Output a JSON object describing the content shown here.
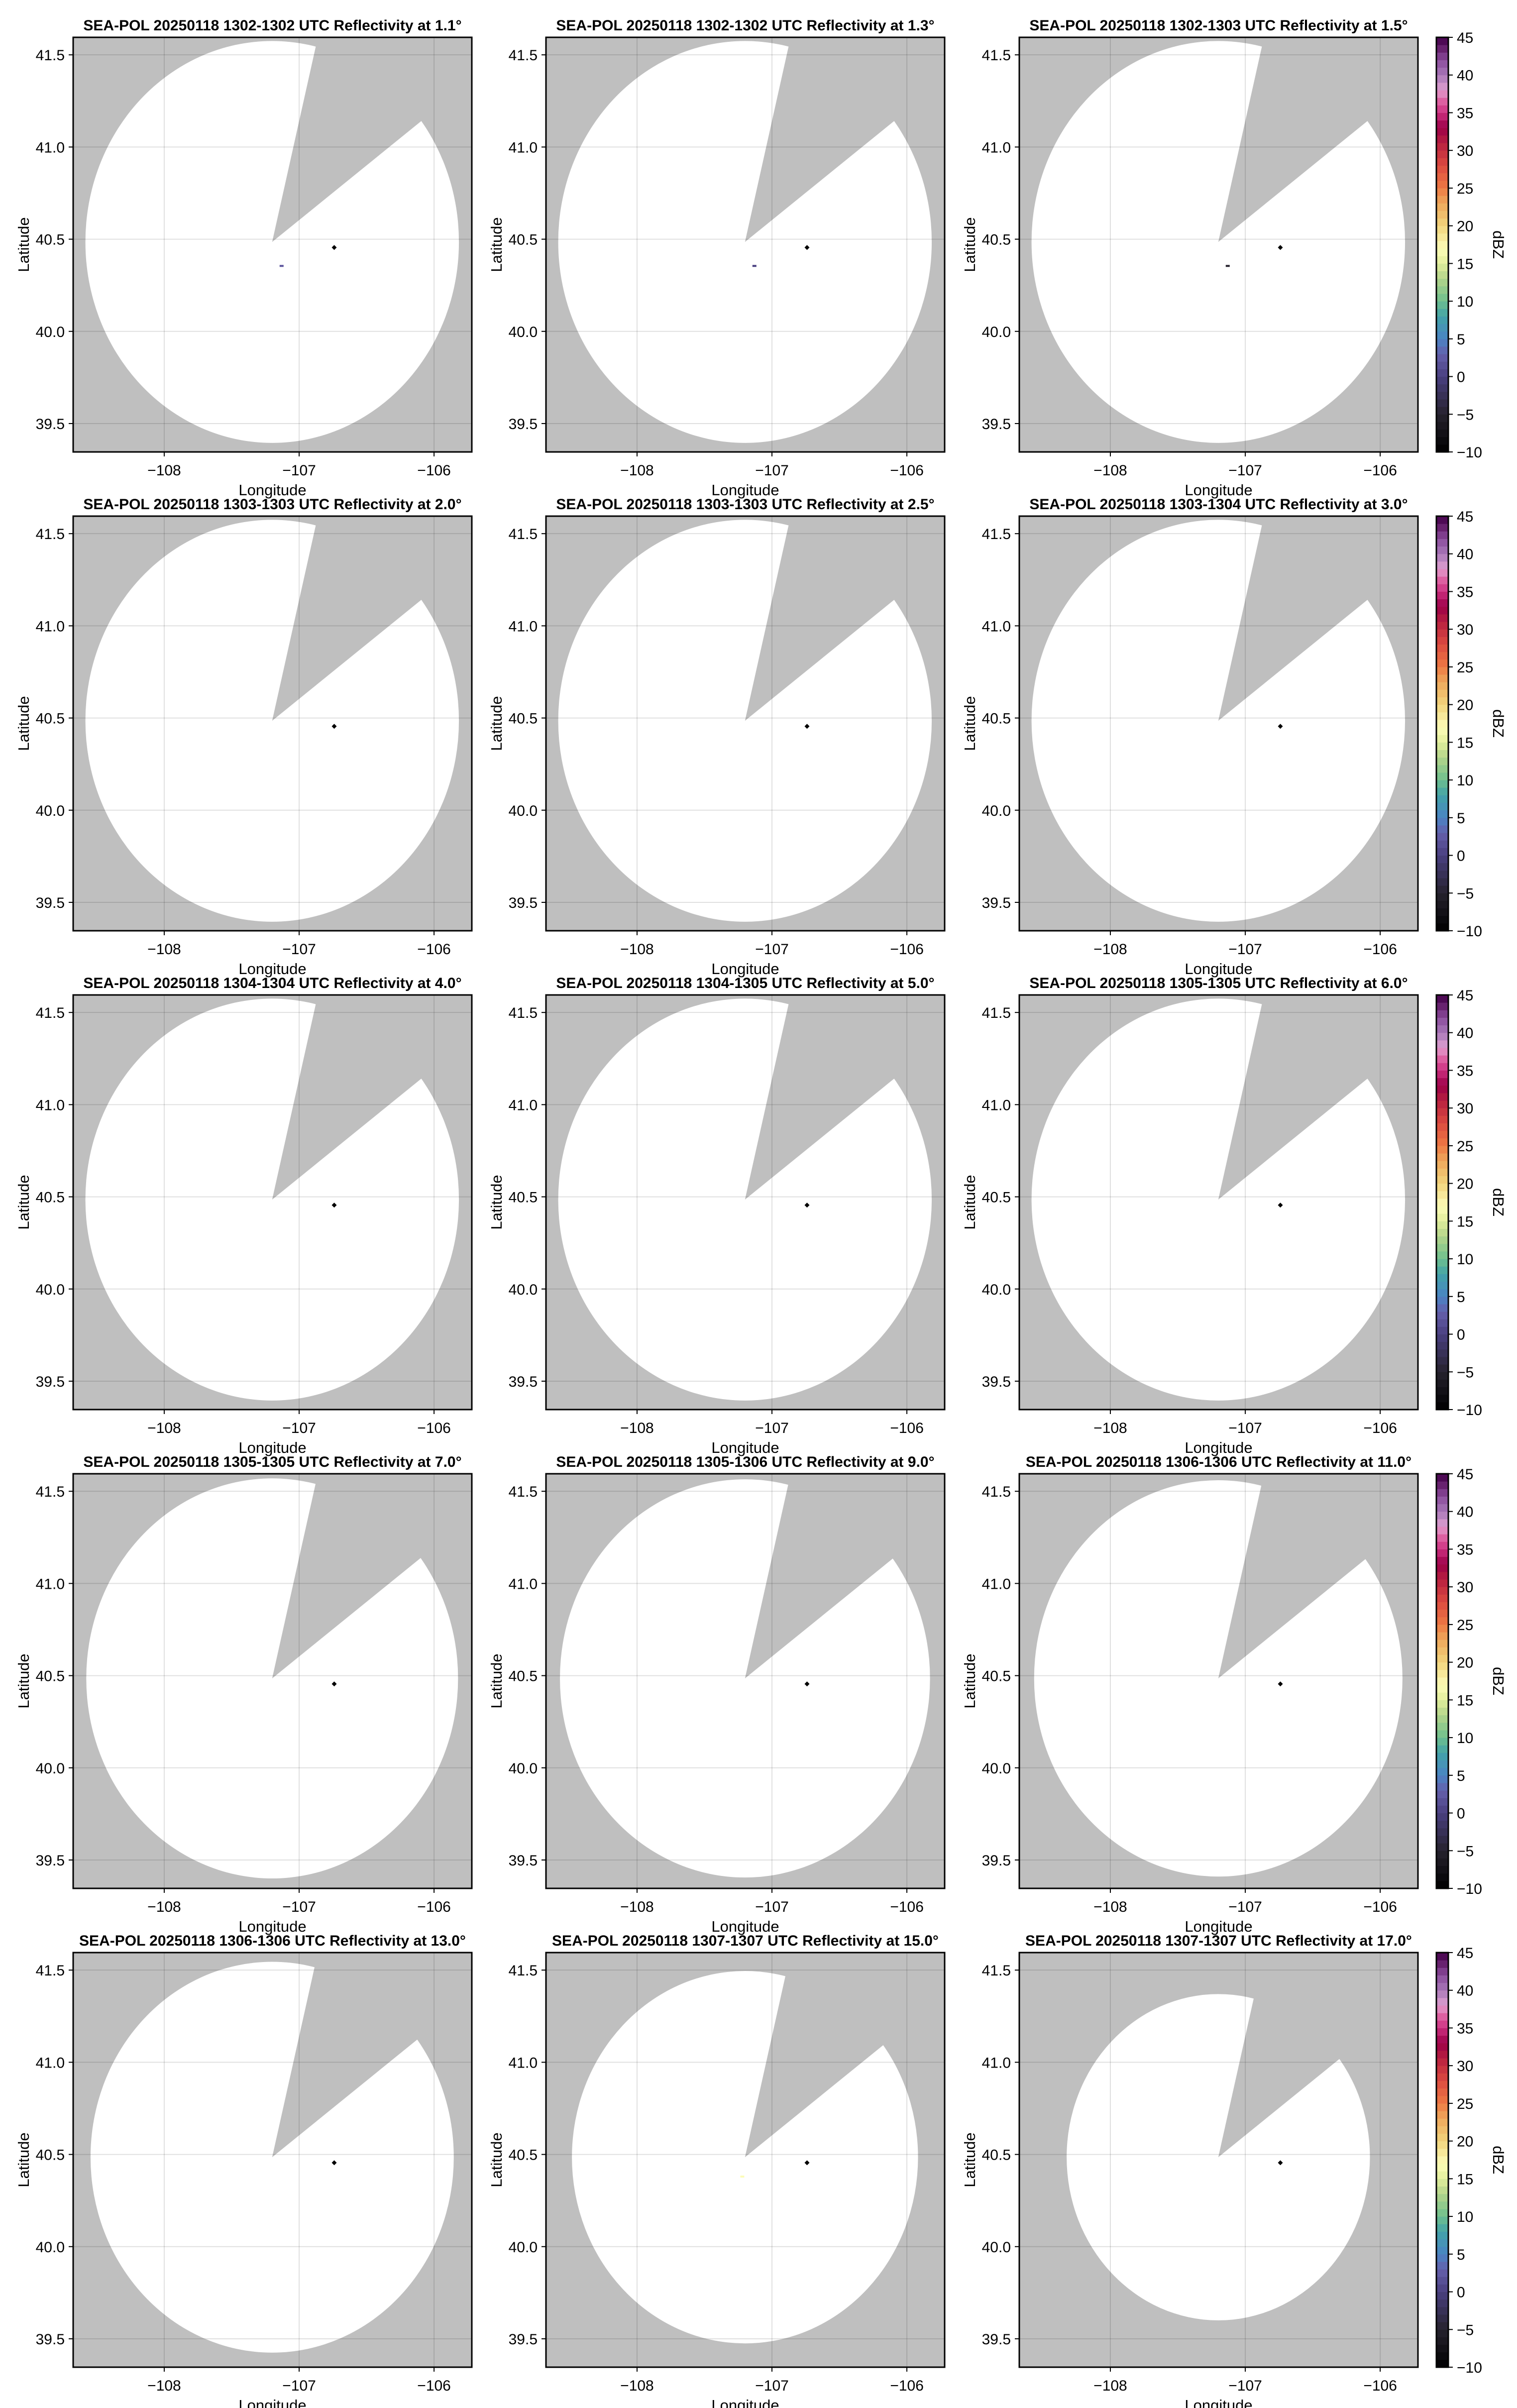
{
  "chart_data": {
    "type": "heatmap",
    "layout": "5 rows x 3 columns",
    "xlabel": "Longitude",
    "ylabel": "Latitude",
    "xlim": [
      -108.675,
      -105.72
    ],
    "ylim": [
      39.346,
      41.595
    ],
    "xticks": [
      -108,
      -107,
      -106
    ],
    "xtick_labels": [
      "−108",
      "−107",
      "−106"
    ],
    "yticks": [
      39.5,
      40.0,
      40.5,
      41.0,
      41.5
    ],
    "ytick_labels": [
      "39.5",
      "40.0",
      "40.5",
      "41.0",
      "41.5"
    ],
    "grid": true,
    "no_data_color": "#bfbfbf",
    "coverage_color": "#ffffff",
    "radar_center": {
      "lon": -107.2,
      "lat": 40.485
    },
    "blocked_sector_azimuth_deg": [
      13.5,
      53
    ],
    "site_marker": {
      "lon": -106.74,
      "lat": 40.455,
      "color": "#000000"
    },
    "colorbar": {
      "label": "dBZ",
      "range": [
        -10,
        45
      ],
      "step": 1,
      "ticks": [
        -10,
        -5,
        0,
        5,
        10,
        15,
        20,
        25,
        30,
        35,
        40,
        45
      ],
      "tick_labels": [
        "−10",
        "−5",
        "0",
        "5",
        "10",
        "15",
        "20",
        "25",
        "30",
        "35",
        "40",
        "45"
      ],
      "color_stops": [
        [
          -10,
          "#000000"
        ],
        [
          -5,
          "#26222e"
        ],
        [
          0,
          "#4a4080"
        ],
        [
          3,
          "#6560ac"
        ],
        [
          5,
          "#4a84c4"
        ],
        [
          8,
          "#43a3a8"
        ],
        [
          10,
          "#6fbf8e"
        ],
        [
          13,
          "#b3d58a"
        ],
        [
          15,
          "#e2ee9c"
        ],
        [
          17,
          "#fcfcb8"
        ],
        [
          20,
          "#f2d47c"
        ],
        [
          23,
          "#eea85c"
        ],
        [
          25,
          "#ee7a44"
        ],
        [
          28,
          "#dc4b40"
        ],
        [
          31,
          "#b82040"
        ],
        [
          33,
          "#9c0048"
        ],
        [
          35,
          "#cc3080"
        ],
        [
          37,
          "#e270ac"
        ],
        [
          38,
          "#e0a0d0"
        ],
        [
          40,
          "#a878b8"
        ],
        [
          42,
          "#8a4c9c"
        ],
        [
          44,
          "#5c1460"
        ],
        [
          45,
          "#40004a"
        ]
      ]
    },
    "panels": [
      {
        "title": "SEA-POL 20250118 1302-1302 UTC Reflectivity at 1.1°",
        "elevation_deg": 1.1,
        "coverage_radius_deg_lat": 1.09,
        "echoes": [
          {
            "lon": -107.13,
            "lat": 40.355,
            "dbz": 2
          }
        ]
      },
      {
        "title": "SEA-POL 20250118 1302-1302 UTC Reflectivity at 1.3°",
        "elevation_deg": 1.3,
        "coverage_radius_deg_lat": 1.09,
        "echoes": [
          {
            "lon": -107.13,
            "lat": 40.355,
            "dbz": 0
          }
        ]
      },
      {
        "title": "SEA-POL 20250118 1302-1303 UTC Reflectivity at 1.5°",
        "elevation_deg": 1.5,
        "coverage_radius_deg_lat": 1.09,
        "echoes": [
          {
            "lon": -107.13,
            "lat": 40.355,
            "dbz": -5
          }
        ]
      },
      {
        "title": "SEA-POL 20250118 1303-1303 UTC Reflectivity at 2.0°",
        "elevation_deg": 2.0,
        "coverage_radius_deg_lat": 1.09,
        "echoes": []
      },
      {
        "title": "SEA-POL 20250118 1303-1303 UTC Reflectivity at 2.5°",
        "elevation_deg": 2.5,
        "coverage_radius_deg_lat": 1.09,
        "echoes": []
      },
      {
        "title": "SEA-POL 20250118 1303-1304 UTC Reflectivity at 3.0°",
        "elevation_deg": 3.0,
        "coverage_radius_deg_lat": 1.09,
        "echoes": []
      },
      {
        "title": "SEA-POL 20250118 1304-1304 UTC Reflectivity at 4.0°",
        "elevation_deg": 4.0,
        "coverage_radius_deg_lat": 1.09,
        "echoes": []
      },
      {
        "title": "SEA-POL 20250118 1304-1305 UTC Reflectivity at 5.0°",
        "elevation_deg": 5.0,
        "coverage_radius_deg_lat": 1.09,
        "echoes": []
      },
      {
        "title": "SEA-POL 20250118 1305-1305 UTC Reflectivity at 6.0°",
        "elevation_deg": 6.0,
        "coverage_radius_deg_lat": 1.09,
        "echoes": []
      },
      {
        "title": "SEA-POL 20250118 1305-1305 UTC Reflectivity at 7.0°",
        "elevation_deg": 7.0,
        "coverage_radius_deg_lat": 1.085,
        "echoes": []
      },
      {
        "title": "SEA-POL 20250118 1305-1306 UTC Reflectivity at 9.0°",
        "elevation_deg": 9.0,
        "coverage_radius_deg_lat": 1.08,
        "echoes": []
      },
      {
        "title": "SEA-POL 20250118 1306-1306 UTC Reflectivity at 11.0°",
        "elevation_deg": 11.0,
        "coverage_radius_deg_lat": 1.075,
        "echoes": []
      },
      {
        "title": "SEA-POL 20250118 1306-1306 UTC Reflectivity at 13.0°",
        "elevation_deg": 13.0,
        "coverage_radius_deg_lat": 1.06,
        "echoes": []
      },
      {
        "title": "SEA-POL 20250118 1307-1307 UTC Reflectivity at 15.0°",
        "elevation_deg": 15.0,
        "coverage_radius_deg_lat": 1.01,
        "echoes": [
          {
            "lon": -107.22,
            "lat": 40.38,
            "dbz": 17
          }
        ]
      },
      {
        "title": "SEA-POL 20250118 1307-1307 UTC Reflectivity at 17.0°",
        "elevation_deg": 17.0,
        "coverage_radius_deg_lat": 0.885,
        "echoes": []
      }
    ]
  }
}
